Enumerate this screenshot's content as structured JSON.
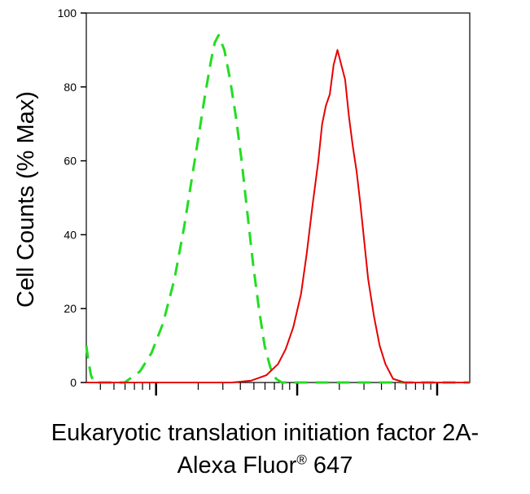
{
  "chart_data": {
    "type": "line",
    "title": "",
    "ylabel": "Cell Counts (% Max)",
    "xlabel_line1": "Eukaryotic translation initiation factor 2A-",
    "xlabel_line2_main": "Alexa Fluor",
    "xlabel_line2_sup": "®",
    "xlabel_line2_tail": " 647",
    "xscale": "log",
    "xlim": [
      0,
      1
    ],
    "ylim": [
      0,
      100
    ],
    "yticks": [
      0,
      20,
      40,
      60,
      80,
      100
    ],
    "ytick_labels": [
      "0",
      "20",
      "40",
      "60",
      "80",
      "100"
    ],
    "xtick_labels": [],
    "grid": false,
    "series": [
      {
        "color": "#22dd22",
        "dash": "dashed",
        "points": [
          [
            0.0,
            10
          ],
          [
            0.005,
            6
          ],
          [
            0.012,
            2
          ],
          [
            0.02,
            0
          ],
          [
            0.1,
            0
          ],
          [
            0.14,
            3
          ],
          [
            0.17,
            8
          ],
          [
            0.2,
            16
          ],
          [
            0.23,
            28
          ],
          [
            0.255,
            42
          ],
          [
            0.275,
            55
          ],
          [
            0.295,
            68
          ],
          [
            0.31,
            78
          ],
          [
            0.325,
            87
          ],
          [
            0.335,
            92
          ],
          [
            0.345,
            94
          ],
          [
            0.36,
            90
          ],
          [
            0.375,
            82
          ],
          [
            0.39,
            72
          ],
          [
            0.405,
            60
          ],
          [
            0.42,
            46
          ],
          [
            0.435,
            32
          ],
          [
            0.45,
            20
          ],
          [
            0.465,
            10
          ],
          [
            0.48,
            4
          ],
          [
            0.495,
            1
          ],
          [
            0.51,
            0
          ],
          [
            1.0,
            0
          ]
        ]
      },
      {
        "color": "#e60000",
        "dash": "solid",
        "points": [
          [
            0.0,
            0
          ],
          [
            0.38,
            0
          ],
          [
            0.43,
            0.5
          ],
          [
            0.47,
            2
          ],
          [
            0.5,
            5
          ],
          [
            0.52,
            9
          ],
          [
            0.54,
            15
          ],
          [
            0.56,
            24
          ],
          [
            0.575,
            35
          ],
          [
            0.59,
            48
          ],
          [
            0.605,
            60
          ],
          [
            0.615,
            70
          ],
          [
            0.625,
            75
          ],
          [
            0.635,
            78
          ],
          [
            0.645,
            86
          ],
          [
            0.655,
            90
          ],
          [
            0.665,
            86
          ],
          [
            0.675,
            82
          ],
          [
            0.685,
            72
          ],
          [
            0.695,
            64
          ],
          [
            0.705,
            57
          ],
          [
            0.715,
            48
          ],
          [
            0.725,
            38
          ],
          [
            0.735,
            28
          ],
          [
            0.75,
            18
          ],
          [
            0.765,
            10
          ],
          [
            0.78,
            5
          ],
          [
            0.8,
            1
          ],
          [
            0.83,
            0
          ],
          [
            1.0,
            0
          ]
        ]
      }
    ]
  }
}
